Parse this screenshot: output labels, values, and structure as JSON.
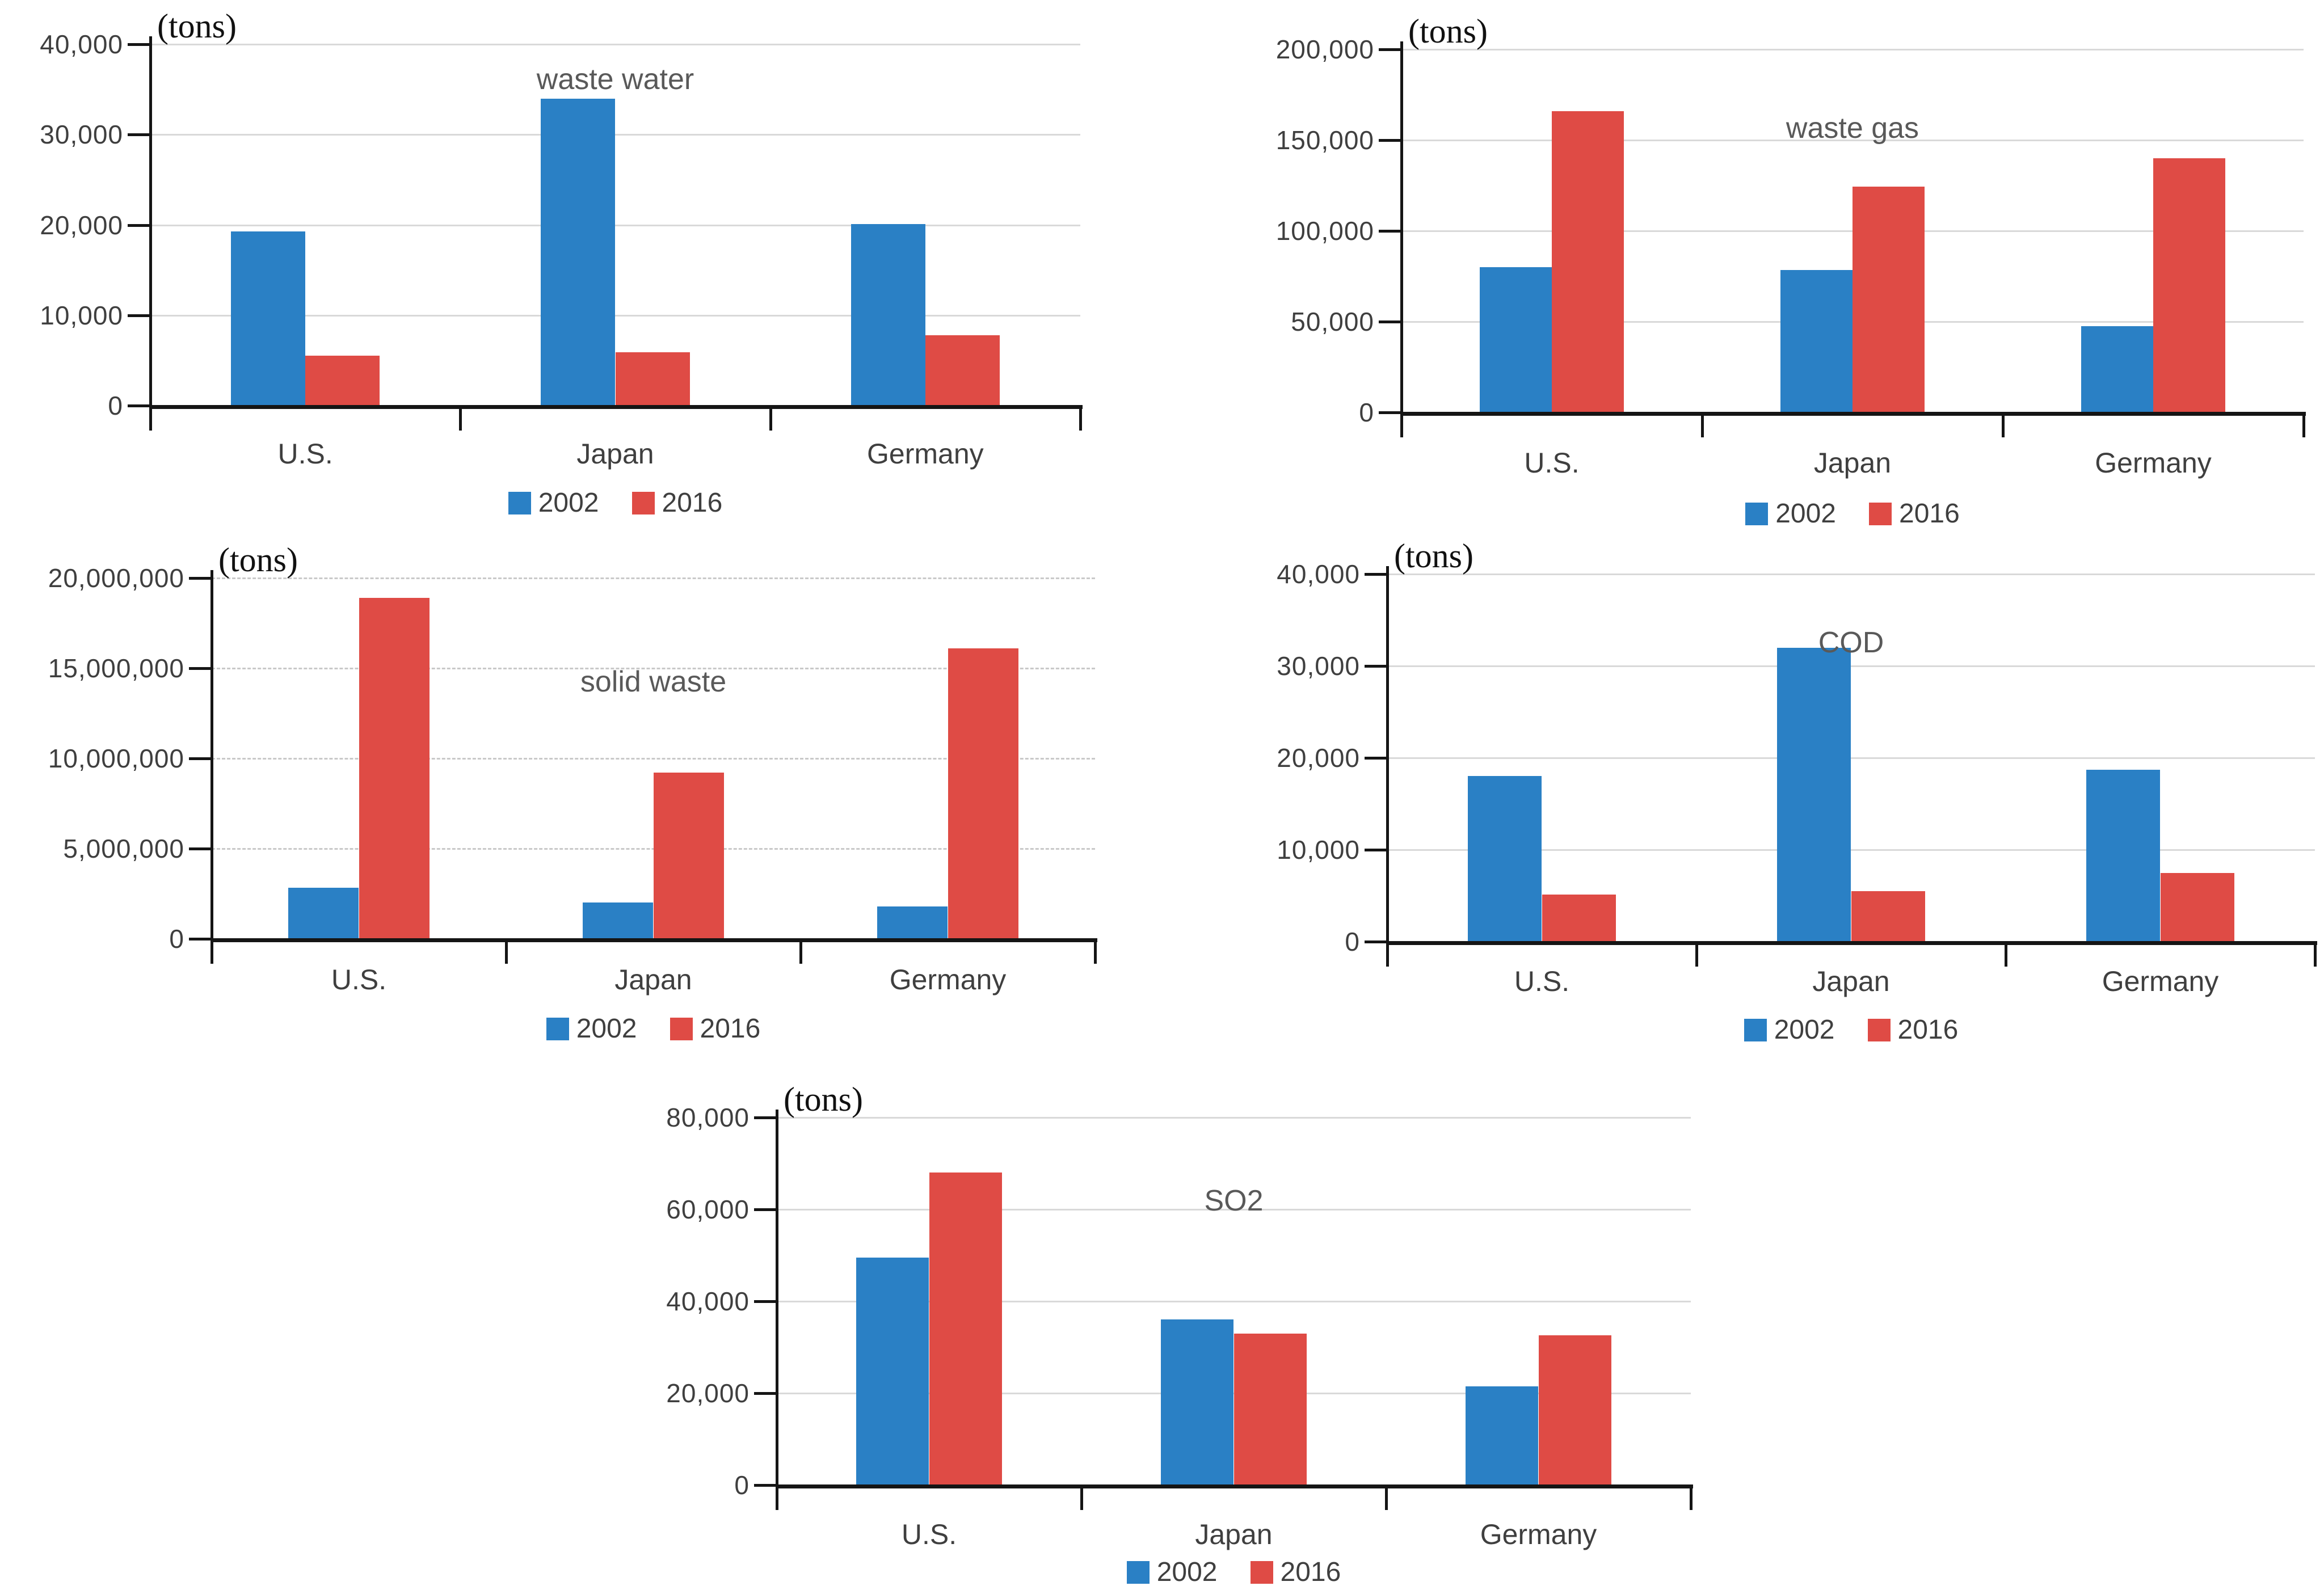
{
  "page": {
    "background": "#ffffff"
  },
  "colors": {
    "bar_2002": "#2A80C5",
    "bar_2016": "#DF4B45",
    "gridline": "#D9D9D9",
    "axis": "#151515",
    "title_text": "#595959",
    "tick_text": "#3F3F3F"
  },
  "chart_data": [
    {
      "type": "bar",
      "title": "waste water",
      "unit_label": "(tons)",
      "categories": [
        "U.S.",
        "Japan",
        "Germany"
      ],
      "series": [
        {
          "name": "2002",
          "color": "#2A80C5",
          "values": [
            19300,
            34000,
            20100
          ]
        },
        {
          "name": "2016",
          "color": "#DF4B45",
          "values": [
            5500,
            5900,
            7800
          ]
        }
      ],
      "ylim": [
        0,
        40000
      ],
      "ytick_step": 10000,
      "ytick_labels": [
        "0",
        "10,000",
        "20,000",
        "30,000",
        "40,000"
      ],
      "grid": "solid",
      "legend_position": "bottom"
    },
    {
      "type": "bar",
      "title": "waste gas",
      "unit_label": "(tons)",
      "categories": [
        "U.S.",
        "Japan",
        "Germany"
      ],
      "series": [
        {
          "name": "2002",
          "color": "#2A80C5",
          "values": [
            80000,
            78500,
            47500
          ]
        },
        {
          "name": "2016",
          "color": "#DF4B45",
          "values": [
            166000,
            124500,
            140000
          ]
        }
      ],
      "ylim": [
        0,
        200000
      ],
      "ytick_step": 50000,
      "ytick_labels": [
        "0",
        "50,000",
        "100,000",
        "150,000",
        "200,000"
      ],
      "grid": "solid",
      "legend_position": "bottom"
    },
    {
      "type": "bar",
      "title": "solid waste",
      "unit_label": "(tons)",
      "categories": [
        "U.S.",
        "Japan",
        "Germany"
      ],
      "series": [
        {
          "name": "2002",
          "color": "#2A80C5",
          "values": [
            2830000,
            2000000,
            1800000
          ]
        },
        {
          "name": "2016",
          "color": "#DF4B45",
          "values": [
            18900000,
            9200000,
            16100000
          ]
        }
      ],
      "ylim": [
        0,
        20000000
      ],
      "ytick_step": 5000000,
      "ytick_labels": [
        "0",
        "5,000,000",
        "10,000,000",
        "15,000,000",
        "20,000,000"
      ],
      "grid": "dashed",
      "legend_position": "bottom"
    },
    {
      "type": "bar",
      "title": "COD",
      "unit_label": "(tons)",
      "categories": [
        "U.S.",
        "Japan",
        "Germany"
      ],
      "series": [
        {
          "name": "2002",
          "color": "#2A80C5",
          "values": [
            18000,
            32000,
            18700
          ]
        },
        {
          "name": "2016",
          "color": "#DF4B45",
          "values": [
            5100,
            5500,
            7500
          ]
        }
      ],
      "ylim": [
        0,
        40000
      ],
      "ytick_step": 10000,
      "ytick_labels": [
        "0",
        "10,000",
        "20,000",
        "30,000",
        "40,000"
      ],
      "grid": "solid",
      "legend_position": "bottom"
    },
    {
      "type": "bar",
      "title": "SO2",
      "unit_label": "(tons)",
      "categories": [
        "U.S.",
        "Japan",
        "Germany"
      ],
      "series": [
        {
          "name": "2002",
          "color": "#2A80C5",
          "values": [
            49500,
            36000,
            21500
          ]
        },
        {
          "name": "2016",
          "color": "#DF4B45",
          "values": [
            68000,
            33000,
            32600
          ]
        }
      ],
      "ylim": [
        0,
        80000
      ],
      "ytick_step": 20000,
      "ytick_labels": [
        "0",
        "20,000",
        "40,000",
        "60,000",
        "80,000"
      ],
      "grid": "solid",
      "legend_position": "bottom"
    }
  ]
}
